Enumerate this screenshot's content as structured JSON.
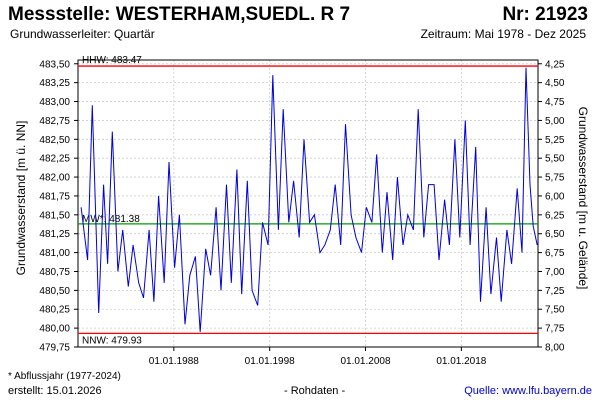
{
  "header": {
    "station_title": "Messstelle: WESTERHAM,SUEDL. R 7",
    "station_number": "Nr: 21923",
    "aquifer": "Grundwasserleiter: Quartär",
    "period": "Zeitraum: Mai 1978 - Dez 2025"
  },
  "footer": {
    "note": "* Abflussjahr (1977-2024)",
    "created": "erstellt:  15.01.2026",
    "raw_data": "- Rohdaten -",
    "source": "Quelle:  www.lfu.bayern.de"
  },
  "colors": {
    "series": "#0000dd",
    "hhw_line": "#ff0000",
    "nnw_line": "#ff0000",
    "mw_line": "#009900",
    "grid": "#cccccc",
    "title_text": "#000000",
    "source_link": "#0000cc"
  },
  "chart_data": {
    "type": "line",
    "title": "Messstelle: WESTERHAM,SUEDL. R 7",
    "ylabel": "Grundwasserstand [m ü. NN]",
    "y2label": "Grundwasserstand [m u. Gelände]",
    "xlim": [
      "1978-01-01",
      "2025-12-31"
    ],
    "ylim": [
      479.75,
      483.55
    ],
    "y2lim": [
      8.0,
      4.2
    ],
    "grid": true,
    "x_ticks": [
      "1988-01-01",
      "1998-01-01",
      "2008-01-01",
      "2018-01-01"
    ],
    "x_tick_labels": [
      "01.01.1988",
      "01.01.1998",
      "01.01.2008",
      "01.01.2018"
    ],
    "y_ticks": [
      479.75,
      480.0,
      480.25,
      480.5,
      480.75,
      481.0,
      481.25,
      481.5,
      481.75,
      482.0,
      482.25,
      482.5,
      482.75,
      483.0,
      483.25,
      483.5
    ],
    "y_tick_labels": [
      "479,75",
      "480,00",
      "480,25",
      "480,50",
      "480,75",
      "481,00",
      "481,25",
      "481,50",
      "481,75",
      "482,00",
      "482,25",
      "482,50",
      "482,75",
      "483,00",
      "483,25",
      "483,50"
    ],
    "y2_ticks": [
      8.0,
      7.75,
      7.5,
      7.25,
      7.0,
      6.75,
      6.5,
      6.25,
      6.0,
      5.75,
      5.5,
      5.25,
      5.0,
      4.75,
      4.5,
      4.25
    ],
    "y2_tick_labels": [
      "8,00",
      "7,75",
      "7,50",
      "7,25",
      "7,00",
      "6,75",
      "6,50",
      "6,25",
      "6,00",
      "5,75",
      "5,50",
      "5,25",
      "5,00",
      "4,75",
      "4,50",
      "4,25"
    ],
    "reference_lines": [
      {
        "label": "HHW: 483.47",
        "value": 483.47,
        "color": "#ff0000"
      },
      {
        "label": "MW*: 481.38",
        "value": 481.38,
        "color": "#009900"
      },
      {
        "label": "NNW: 479.93",
        "value": 479.93,
        "color": "#ff0000"
      }
    ],
    "series": [
      {
        "x": [
          "1978-05",
          "1979-01",
          "1979-07",
          "1980-03",
          "1980-09",
          "1981-02",
          "1981-08",
          "1982-03",
          "1982-09",
          "1983-04",
          "1983-10",
          "1984-05",
          "1984-11",
          "1985-06",
          "1985-12",
          "1986-06",
          "1987-01",
          "1987-07",
          "1988-02",
          "1988-08",
          "1989-03",
          "1989-09",
          "1990-04",
          "1990-10",
          "1991-05",
          "1991-11",
          "1992-06",
          "1992-12",
          "1993-07",
          "1994-01",
          "1994-08",
          "1995-02",
          "1995-09",
          "1996-03",
          "1996-10",
          "1997-04",
          "1997-11",
          "1998-05",
          "1998-12",
          "1999-06",
          "2000-01",
          "2000-07",
          "2001-02",
          "2001-08",
          "2002-03",
          "2002-09",
          "2003-04",
          "2003-10",
          "2004-05",
          "2004-11",
          "2005-06",
          "2005-12",
          "2006-07",
          "2007-01",
          "2007-08",
          "2008-02",
          "2008-09",
          "2009-03",
          "2009-10",
          "2010-04",
          "2010-11",
          "2011-05",
          "2011-12",
          "2012-06",
          "2013-01",
          "2013-07",
          "2014-02",
          "2014-08",
          "2015-03",
          "2015-09",
          "2016-04",
          "2016-10",
          "2017-05",
          "2017-11",
          "2018-06",
          "2018-12",
          "2019-07",
          "2020-01",
          "2020-08",
          "2021-02",
          "2021-09",
          "2022-03",
          "2022-10",
          "2023-04",
          "2023-11",
          "2024-05",
          "2024-10",
          "2025-03",
          "2025-07",
          "2025-12"
        ],
        "values": [
          481.6,
          480.9,
          482.95,
          480.2,
          481.9,
          480.85,
          482.6,
          480.75,
          481.3,
          480.55,
          481.1,
          480.6,
          480.4,
          481.3,
          480.35,
          481.75,
          480.6,
          482.2,
          480.8,
          481.5,
          480.05,
          480.7,
          480.95,
          479.95,
          481.05,
          480.7,
          481.6,
          480.5,
          481.9,
          480.6,
          482.1,
          480.45,
          481.95,
          480.5,
          480.3,
          481.4,
          481.1,
          483.35,
          481.3,
          482.9,
          481.4,
          481.95,
          481.2,
          482.5,
          481.4,
          481.5,
          481.0,
          481.1,
          481.3,
          481.9,
          481.1,
          482.7,
          481.5,
          481.2,
          481.0,
          481.6,
          481.4,
          482.3,
          481.0,
          481.8,
          480.9,
          482.0,
          481.1,
          481.5,
          481.3,
          482.9,
          481.2,
          481.9,
          481.9,
          480.9,
          481.7,
          481.1,
          482.5,
          481.2,
          482.75,
          481.1,
          482.4,
          480.35,
          481.6,
          480.45,
          481.2,
          480.35,
          481.3,
          480.85,
          481.85,
          481.0,
          483.45,
          481.9,
          481.35,
          481.1
        ]
      }
    ]
  }
}
